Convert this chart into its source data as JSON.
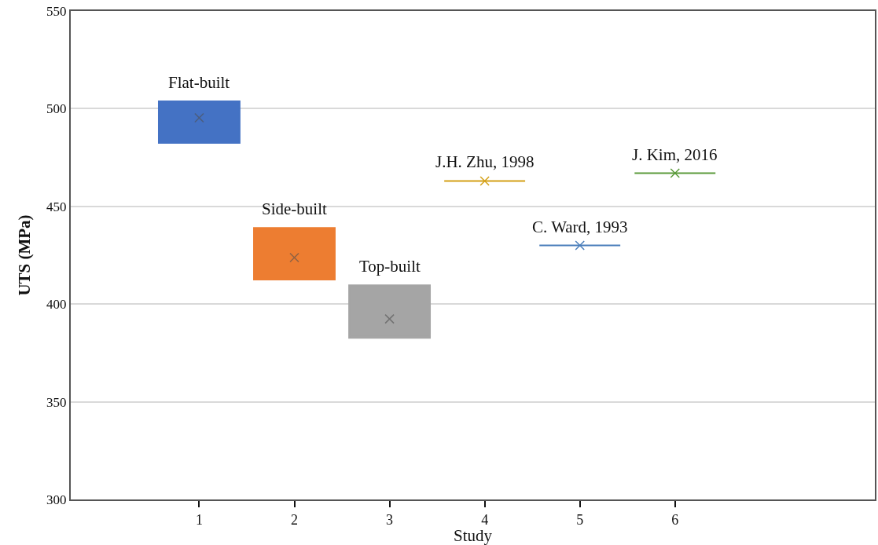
{
  "chart_data": {
    "type": "box",
    "xlabel": "Study",
    "ylabel": "UTS (MPa)",
    "categories": [
      "1",
      "2",
      "3",
      "4",
      "5",
      "6"
    ],
    "colors": [
      "#4472c4",
      "#ed7d31",
      "#a5a5a5",
      "#d4a017",
      "#4a7ebb",
      "#5a9a3a"
    ],
    "boxes": [
      {
        "low": 482.5,
        "q1": 482.5,
        "median": 498.6,
        "q3": 503.8,
        "high": 503.8,
        "mean": 495.3
      },
      {
        "low": 412.5,
        "q1": 412.5,
        "median": 419.4,
        "q3": 439,
        "high": 439,
        "mean": 423.8
      },
      {
        "low": 382.7,
        "q1": 382.7,
        "median": 384.3,
        "q3": 409.6,
        "high": 409.6,
        "mean": 392.4
      },
      {
        "low": 463,
        "q1": 463,
        "median": 463,
        "q3": 463,
        "high": 463,
        "mean": 463
      },
      {
        "low": 430,
        "q1": 430,
        "median": 430,
        "q3": 430,
        "high": 430,
        "mean": 430
      },
      {
        "low": 467,
        "q1": 467,
        "median": 467,
        "q3": 467,
        "high": 467,
        "mean": 467
      }
    ],
    "annotations": [
      "Flat-built",
      "Side-built",
      "Top-built",
      "J.H. Zhu, 1998",
      "C. Ward, 1993",
      "J. Kim, 2016"
    ],
    "ylim": [
      300,
      550
    ],
    "yticks": [
      300,
      350,
      400,
      450,
      500,
      550
    ],
    "grid": "y",
    "marker": "cross"
  }
}
